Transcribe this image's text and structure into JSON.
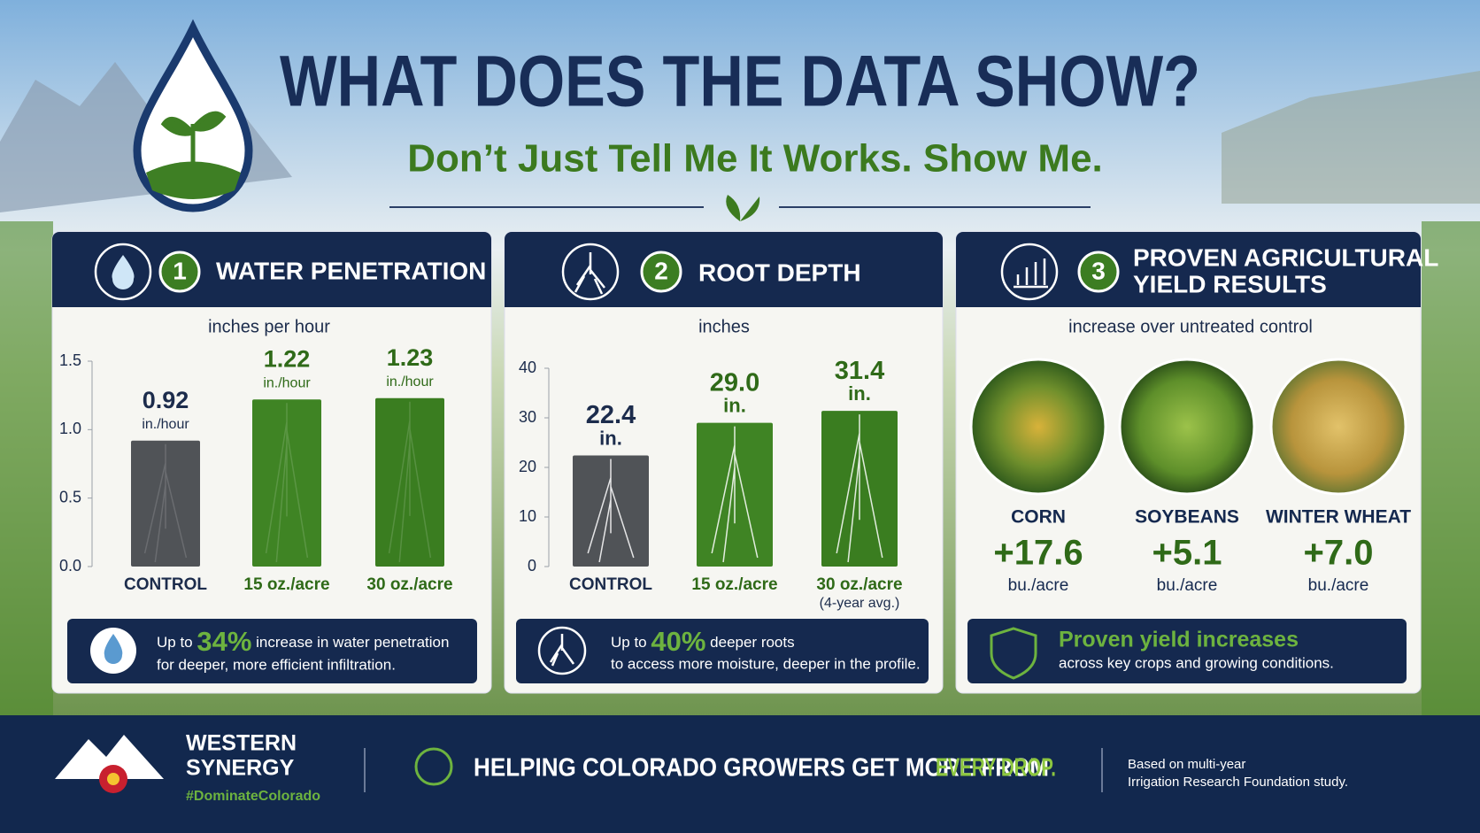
{
  "header": {
    "title": "WHAT DOES THE DATA SHOW?",
    "tagline": "Don’t Just Tell Me It Works. Show Me."
  },
  "chart_data": [
    {
      "type": "bar",
      "number": "1",
      "title": "WATER PENETRATION",
      "subtitle": "inches per hour",
      "unit": "in./hour",
      "categories": [
        "CONTROL",
        "15 oz./acre",
        "30 oz./acre"
      ],
      "category_notes": [
        null,
        null,
        null
      ],
      "values": [
        0.92,
        1.22,
        1.23
      ],
      "colors": [
        "#505357",
        "#3f8424",
        "#3a7d20"
      ],
      "ylim": [
        0,
        1.5
      ],
      "yticks": [
        {
          "value": 0,
          "label": "0.0"
        },
        0.5,
        {
          "value": 1,
          "label": "1.0"
        },
        1.5
      ],
      "callout": {
        "prefix": "Up to",
        "highlight": "34%",
        "text": "increase in water penetration",
        "detail": "for deeper, more efficient infiltration."
      }
    },
    {
      "type": "bar",
      "number": "2",
      "title": "ROOT DEPTH",
      "subtitle": "inches",
      "unit": "in.",
      "categories": [
        "CONTROL",
        "15 oz./acre",
        "30 oz./acre"
      ],
      "category_notes": [
        null,
        null,
        "(4-year avg.)"
      ],
      "values": [
        22.4,
        29.0,
        31.4
      ],
      "value_labels": [
        "22.4",
        "29.0",
        "31.4"
      ],
      "colors": [
        "#505357",
        "#3f8424",
        "#3a7d20"
      ],
      "ylim": [
        0,
        40
      ],
      "yticks": [
        0,
        10,
        20,
        30,
        40
      ],
      "callout": {
        "prefix": "Up to",
        "highlight": "40%",
        "text": "deeper roots",
        "detail": "to access more moisture, deeper in the profile."
      }
    }
  ],
  "yield_results": {
    "number": "3",
    "title_lines": [
      "PROVEN AGRICULTURAL",
      "YIELD RESULTS"
    ],
    "subtitle": "increase over untreated control",
    "crops": [
      {
        "name": "CORN",
        "change": "+17.6",
        "unit": "bu./acre"
      },
      {
        "name": "SOYBEANS",
        "change": "+5.1",
        "unit": "bu./acre"
      },
      {
        "name": "WINTER WHEAT",
        "change": "+7.0",
        "unit": "bu./acre"
      }
    ],
    "callout": {
      "headline": "Proven yield increases",
      "detail": "across key crops and growing conditions."
    }
  },
  "footer": {
    "brand_lines": [
      "WESTERN",
      "SYNERGY"
    ],
    "hashtag": "#DominateColorado",
    "message": "HELPING COLORADO GROWERS GET MORE FROM",
    "message_highlight": "EVERY DROP.",
    "source_lines": [
      "Based on multi-year",
      "Irrigation Research Foundation study."
    ]
  }
}
